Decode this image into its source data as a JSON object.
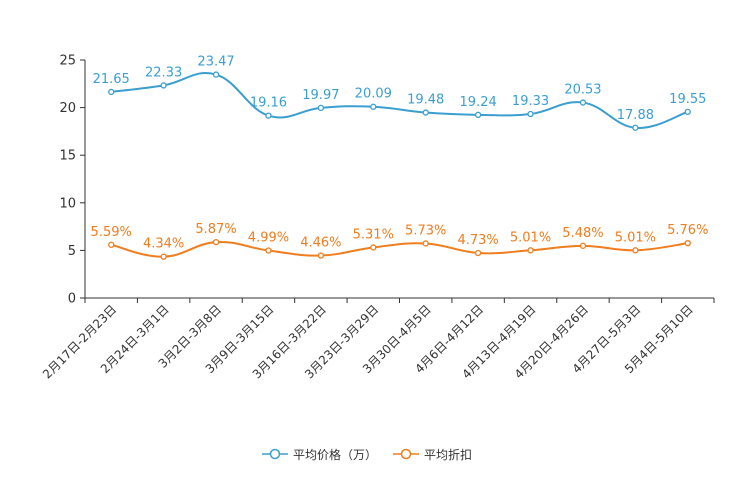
{
  "chart_data": {
    "type": "line",
    "categories": [
      "2月17日-2月23日",
      "2月24日-3月1日",
      "3月2日-3月8日",
      "3月9日-3月15日",
      "3月16日-3月22日",
      "3月23日-3月29日",
      "3月30日-4月5日",
      "4月6日-4月12日",
      "4月13日-4月19日",
      "4月20日-4月26日",
      "4月27日-5月3日",
      "5月4日-5月10日"
    ],
    "ylim": [
      0,
      25
    ],
    "yticks": [
      0,
      5,
      10,
      15,
      20,
      25
    ],
    "series": [
      {
        "name": "平均价格（万）",
        "color": "#3a9fd0",
        "values": [
          21.65,
          22.33,
          23.47,
          19.16,
          19.97,
          20.09,
          19.48,
          19.24,
          19.33,
          20.53,
          17.88,
          19.55
        ],
        "labels": [
          "21.65",
          "22.33",
          "23.47",
          "19.16",
          "19.97",
          "20.09",
          "19.48",
          "19.24",
          "19.33",
          "20.53",
          "17.88",
          "19.55"
        ]
      },
      {
        "name": "平均折扣",
        "color": "#f07d1e",
        "values": [
          5.59,
          4.34,
          5.87,
          4.99,
          4.46,
          5.31,
          5.73,
          4.73,
          5.01,
          5.48,
          5.01,
          5.76
        ],
        "labels": [
          "5.59%",
          "4.34%",
          "5.87%",
          "4.99%",
          "4.46%",
          "5.31%",
          "5.73%",
          "4.73%",
          "5.01%",
          "5.48%",
          "5.01%",
          "5.76%"
        ]
      }
    ]
  }
}
